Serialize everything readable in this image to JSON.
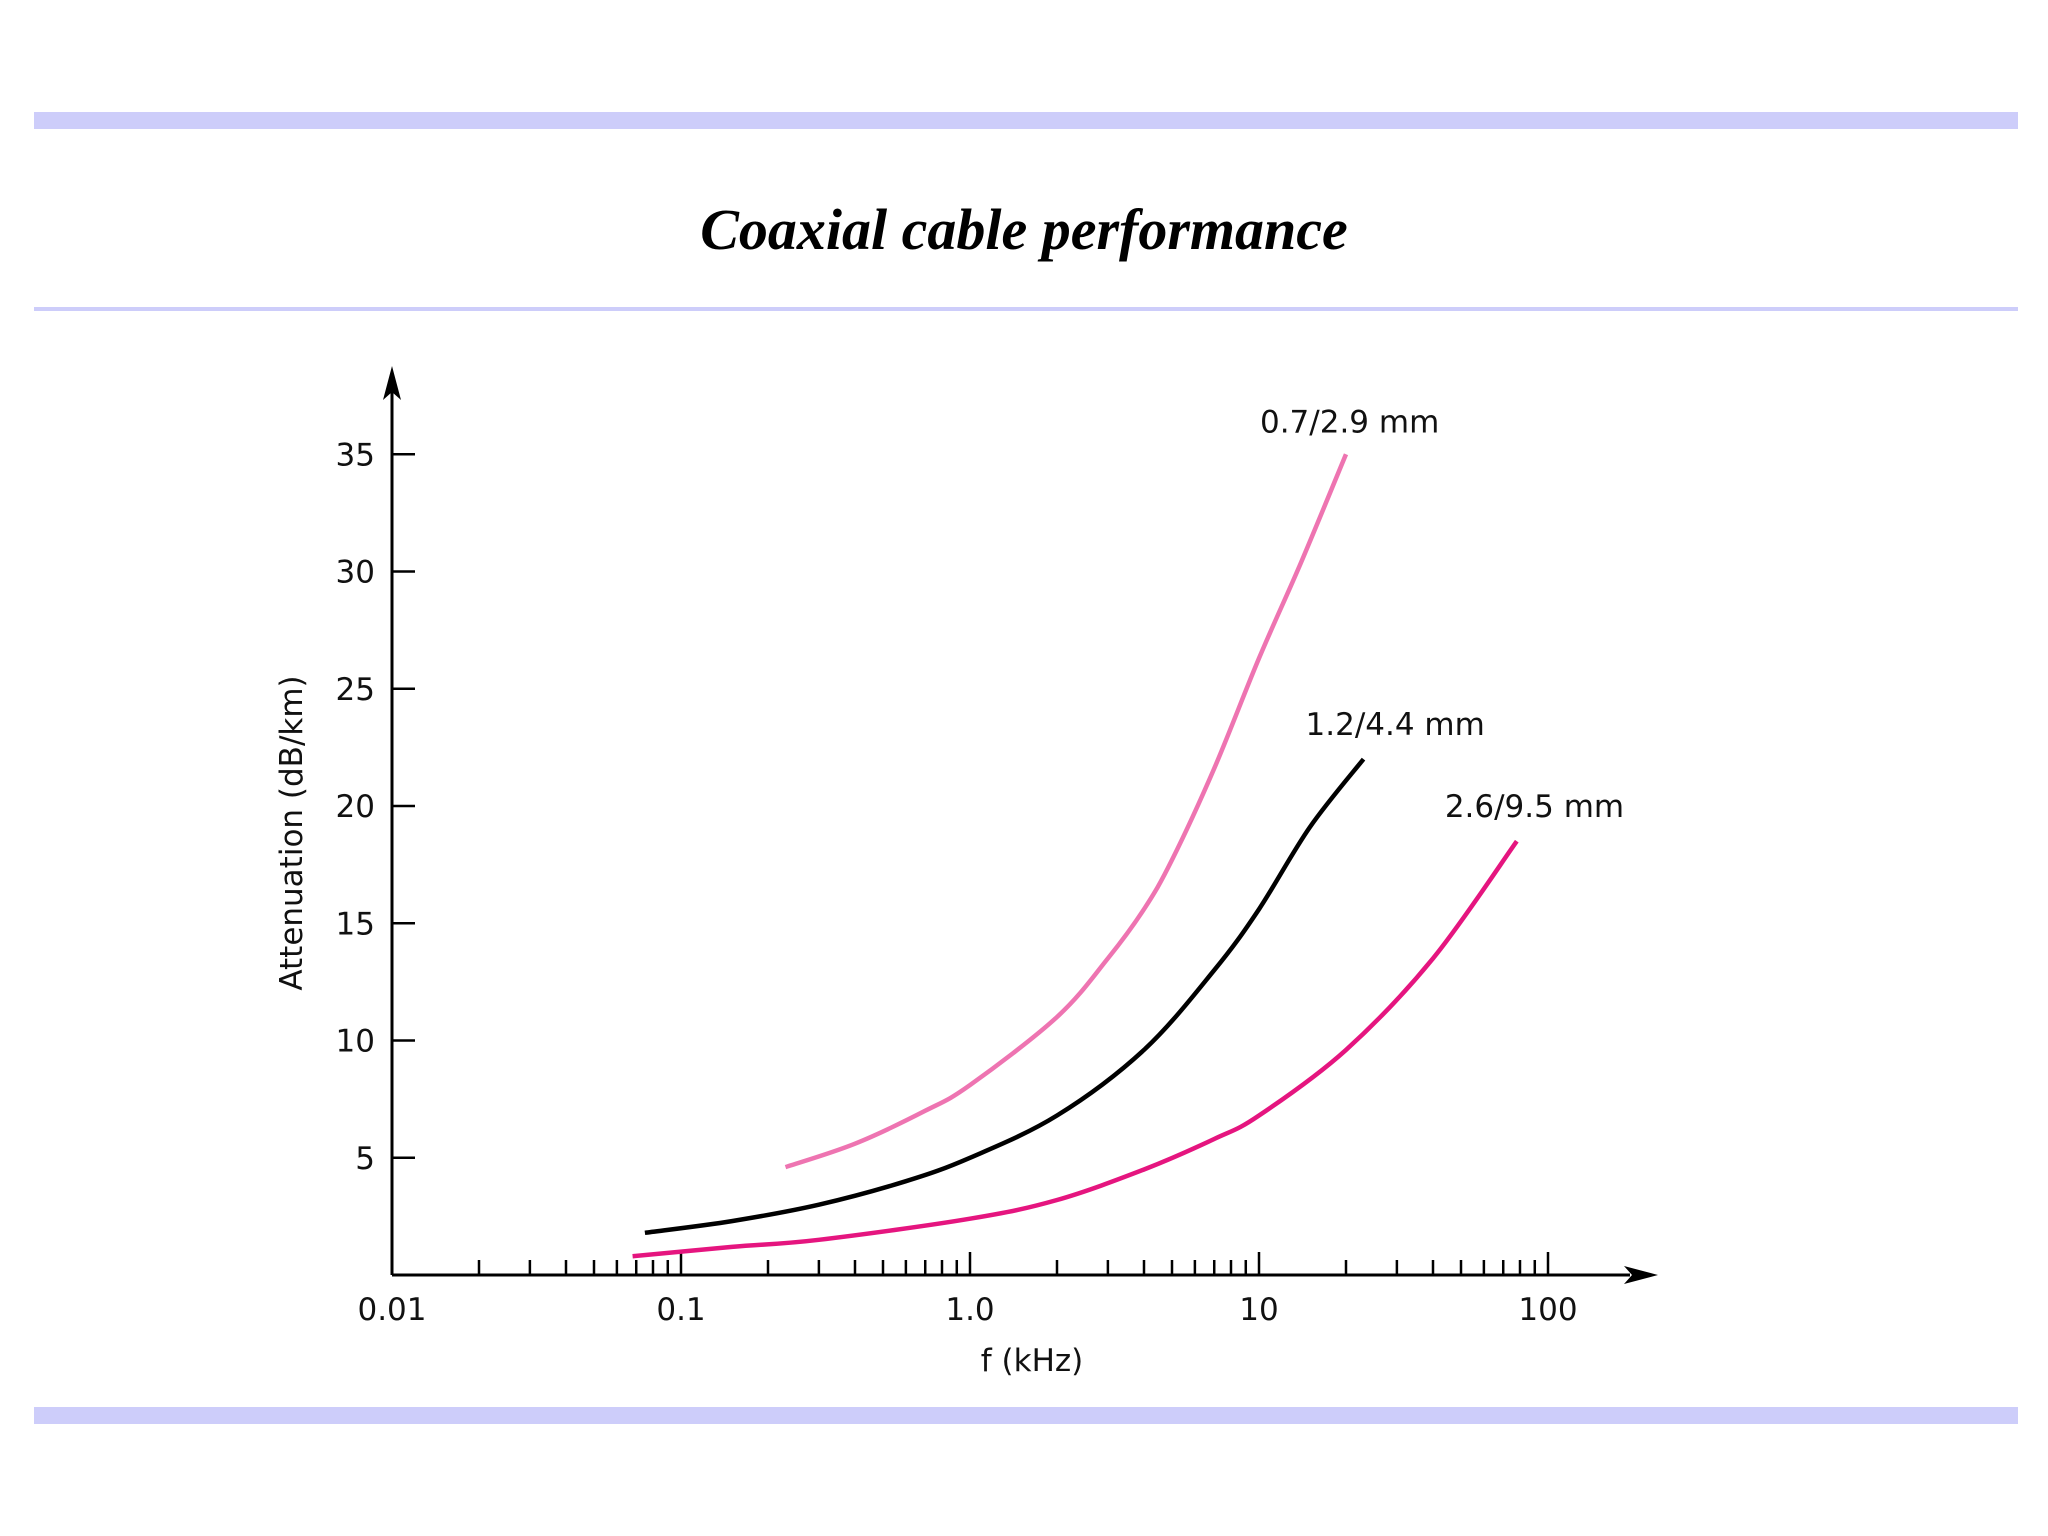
{
  "slide": {
    "title": "Coaxial cable performance"
  },
  "chart_data": {
    "type": "line",
    "title": "",
    "xlabel": "f (kHz)",
    "ylabel": "Attenuation (dB/km)",
    "x_scale": "log",
    "xlim": [
      0.01,
      200
    ],
    "ylim": [
      0,
      37
    ],
    "x_ticks": [
      {
        "value": 0.01,
        "label": "0.01"
      },
      {
        "value": 0.1,
        "label": "0.1"
      },
      {
        "value": 1,
        "label": "1.0"
      },
      {
        "value": 10,
        "label": "10"
      },
      {
        "value": 100,
        "label": "100"
      }
    ],
    "y_ticks": [
      {
        "value": 5,
        "label": "5"
      },
      {
        "value": 10,
        "label": "10"
      },
      {
        "value": 15,
        "label": "15"
      },
      {
        "value": 20,
        "label": "20"
      },
      {
        "value": 25,
        "label": "25"
      },
      {
        "value": 30,
        "label": "30"
      },
      {
        "value": 35,
        "label": "35"
      }
    ],
    "grid": false,
    "legend": "labels placed at the end of each curve",
    "series": [
      {
        "name": "0.7/2.9 mm",
        "color": "#ee74b1",
        "points": [
          {
            "x": 0.23,
            "y": 4.6
          },
          {
            "x": 0.4,
            "y": 5.6
          },
          {
            "x": 0.7,
            "y": 7.0
          },
          {
            "x": 1.0,
            "y": 8.1
          },
          {
            "x": 2.0,
            "y": 11.0
          },
          {
            "x": 3.0,
            "y": 13.5
          },
          {
            "x": 4.0,
            "y": 15.6
          },
          {
            "x": 5.0,
            "y": 17.7
          },
          {
            "x": 7.0,
            "y": 21.6
          },
          {
            "x": 10.0,
            "y": 26.3
          },
          {
            "x": 14.0,
            "y": 30.4
          },
          {
            "x": 20.0,
            "y": 35.0
          }
        ]
      },
      {
        "name": "1.2/4.4 mm",
        "color": "#000000",
        "points": [
          {
            "x": 0.075,
            "y": 1.8
          },
          {
            "x": 0.15,
            "y": 2.3
          },
          {
            "x": 0.3,
            "y": 3.0
          },
          {
            "x": 0.6,
            "y": 4.0
          },
          {
            "x": 1.0,
            "y": 5.0
          },
          {
            "x": 2.0,
            "y": 6.8
          },
          {
            "x": 4.0,
            "y": 9.6
          },
          {
            "x": 7.0,
            "y": 13.0
          },
          {
            "x": 10.0,
            "y": 15.6
          },
          {
            "x": 15.0,
            "y": 19.1
          },
          {
            "x": 23.0,
            "y": 22.0
          }
        ]
      },
      {
        "name": "2.6/9.5 mm",
        "color": "#e5157f",
        "points": [
          {
            "x": 0.068,
            "y": 0.8
          },
          {
            "x": 0.15,
            "y": 1.2
          },
          {
            "x": 0.3,
            "y": 1.5
          },
          {
            "x": 1.0,
            "y": 2.4
          },
          {
            "x": 2.0,
            "y": 3.2
          },
          {
            "x": 4.0,
            "y": 4.5
          },
          {
            "x": 7.0,
            "y": 5.8
          },
          {
            "x": 10.0,
            "y": 6.8
          },
          {
            "x": 20.0,
            "y": 9.6
          },
          {
            "x": 40.0,
            "y": 13.5
          },
          {
            "x": 78.0,
            "y": 18.5
          }
        ]
      }
    ]
  }
}
